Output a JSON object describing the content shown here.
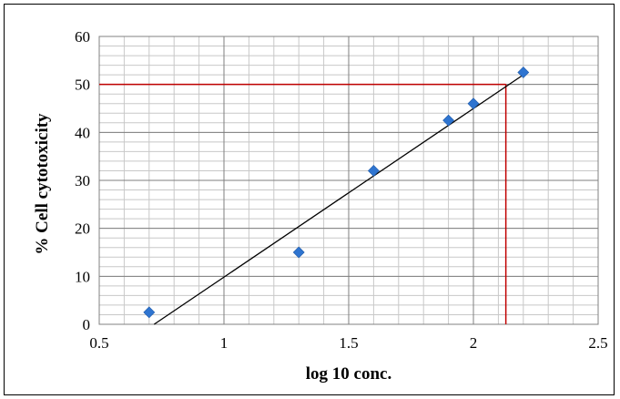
{
  "chart_data": {
    "type": "scatter",
    "title": "",
    "xlabel": "log 10 conc.",
    "ylabel": "% Cell cytotoxicity",
    "xlim": [
      0.5,
      2.5
    ],
    "ylim": [
      0,
      60
    ],
    "x_ticks": [
      0.5,
      1,
      1.5,
      2,
      2.5
    ],
    "x_tick_labels": [
      "0.5",
      "1",
      "1.5",
      "2",
      "2.5"
    ],
    "y_ticks": [
      0,
      10,
      20,
      30,
      40,
      50,
      60
    ],
    "y_tick_labels": [
      "0",
      "10",
      "20",
      "30",
      "40",
      "50",
      "60"
    ],
    "x_minor_step": 0.1,
    "y_minor_step": 2,
    "grid": true,
    "legend": "none",
    "series": [
      {
        "x": [
          0.7,
          1.3,
          1.6,
          1.9,
          2.0,
          2.2
        ],
        "y": [
          2.5,
          15,
          32,
          42.5,
          46,
          52.5
        ],
        "color": "#2e74d0",
        "marker": "diamond"
      }
    ],
    "trendline": {
      "type": "linear",
      "x": [
        0.72,
        2.2
      ],
      "y": [
        0,
        52
      ],
      "color": "#000000"
    },
    "reference_lines": {
      "y_value": 50,
      "x_value": 2.13,
      "color": "#c00000"
    }
  }
}
